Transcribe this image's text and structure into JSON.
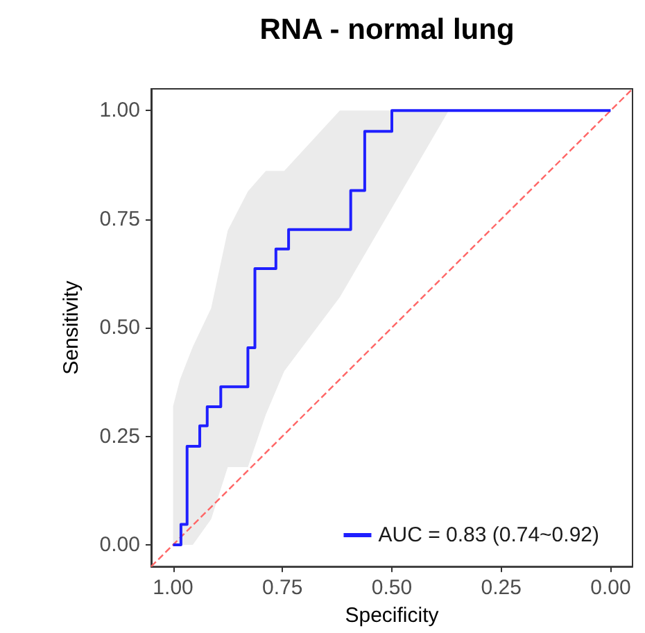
{
  "chart_data": {
    "type": "step",
    "title": "RNA - normal lung",
    "xlabel": "Specificity",
    "ylabel": "Sensitivity",
    "xlim": [
      1.05,
      -0.05
    ],
    "ylim": [
      -0.05,
      1.05
    ],
    "xticks": [
      {
        "value": 1,
        "label": "1.00"
      },
      {
        "value": 0.75,
        "label": "0.75"
      },
      {
        "value": 0.5,
        "label": "0.50"
      },
      {
        "value": 0.25,
        "label": "0.25"
      },
      {
        "value": 0,
        "label": "0.00"
      }
    ],
    "yticks": [
      {
        "value": 0,
        "label": "0.00"
      },
      {
        "value": 0.25,
        "label": "0.25"
      },
      {
        "value": 0.5,
        "label": "0.50"
      },
      {
        "value": 0.75,
        "label": "0.75"
      },
      {
        "value": 1,
        "label": "1.00"
      }
    ],
    "grid": false,
    "legend": "bottom right",
    "marker": "none",
    "series": [
      {
        "type": "line",
        "color": "#ebebeb",
        "x": [
          1.0,
          0.984,
          0.955,
          0.913,
          0.875,
          0.829,
          0.788,
          0.746,
          0.619,
          0.37
        ],
        "values": [
          null,
          null,
          null,
          null,
          null,
          null,
          null,
          null,
          null,
          null
        ],
        "lower": [
          0,
          0,
          0,
          0.059,
          0.179,
          0.179,
          0.3,
          0.4,
          0.57,
          1.0
        ],
        "upper": [
          0.319,
          0.381,
          0.456,
          0.545,
          0.724,
          0.814,
          0.861,
          0.861,
          1.0,
          1.0
        ]
      },
      {
        "type": "line",
        "color": "#ff6666",
        "line_style": "dashed",
        "x": [
          1.05,
          -0.05
        ],
        "values": [
          -0.05,
          1.05
        ]
      },
      {
        "name": "AUC = 0.83 (0.74~0.92)",
        "color": "#1f1fff",
        "x": [
          1.0,
          0.982,
          0.968,
          0.939,
          0.922,
          0.891,
          0.829,
          0.813,
          0.765,
          0.736,
          0.594,
          0.562,
          0.5,
          0.0
        ],
        "values": [
          0,
          0.047,
          0.227,
          0.274,
          0.318,
          0.364,
          0.454,
          0.636,
          0.681,
          0.726,
          0.816,
          0.952,
          1.0,
          1.0
        ]
      }
    ]
  }
}
